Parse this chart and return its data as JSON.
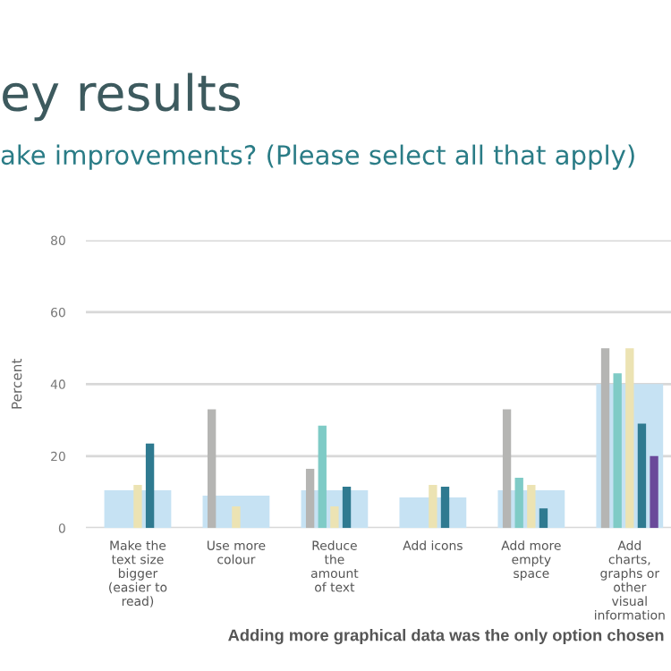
{
  "chart_data": {
    "type": "bar",
    "title": "ey results",
    "subtitle": "ake improvements? (Please select all that apply)",
    "ylabel": "Percent",
    "annotations": [
      "Adding more graphical data was the only option chosen"
    ],
    "categories": [
      "Make the\ntext size\nbigger\n(easier to\nread)",
      "Use more\ncolour",
      "Reduce\nthe\namount\nof text",
      "Add icons",
      "Add more\nempty\nspace",
      "Add\ncharts,\ngraphs or\nother\nvisual\ninformation"
    ],
    "series": [
      {
        "color": "#c6e2f3",
        "values": [
          10.5,
          9,
          10.5,
          8.5,
          10.5,
          40
        ]
      },
      {
        "color": "#b5b5b3",
        "values": [
          0,
          33,
          16.5,
          0,
          33,
          50
        ]
      },
      {
        "color": "#7fcbc6",
        "values": [
          0,
          0,
          28.5,
          0,
          14,
          43
        ]
      },
      {
        "color": "#ece3b3",
        "values": [
          12,
          6,
          6,
          12,
          12,
          50
        ]
      },
      {
        "color": "#2f7a90",
        "values": [
          23.5,
          0,
          11.5,
          11.5,
          5.5,
          29
        ]
      },
      {
        "color": "#6a4a9a",
        "values": [
          0,
          0,
          0,
          0,
          0,
          20
        ]
      }
    ],
    "ylim": [
      0,
      80
    ],
    "yticks": [
      0,
      20,
      40,
      60,
      80
    ],
    "grid": "y",
    "legend": false
  }
}
